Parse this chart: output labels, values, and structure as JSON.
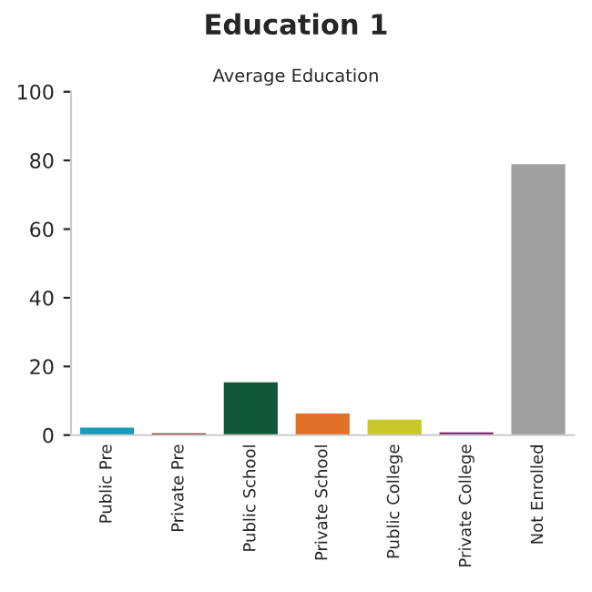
{
  "chart_data": {
    "type": "bar",
    "title": "Education 1",
    "subtitle": "Average Education",
    "categories": [
      "Public Pre",
      "Private Pre",
      "Public School",
      "Private School",
      "Public College",
      "Private College",
      "Not Enrolled"
    ],
    "values": [
      2.2,
      0.5,
      15.4,
      6.3,
      4.5,
      0.8,
      78.9
    ],
    "colors": [
      "#1a9ab8",
      "#7a1010",
      "#11583a",
      "#e0702a",
      "#c8c828",
      "#7a1a6a",
      "#a0a0a0"
    ],
    "ylim": [
      0,
      100
    ],
    "yticks": [
      0,
      20,
      40,
      60,
      80,
      100
    ],
    "grid": false
  }
}
